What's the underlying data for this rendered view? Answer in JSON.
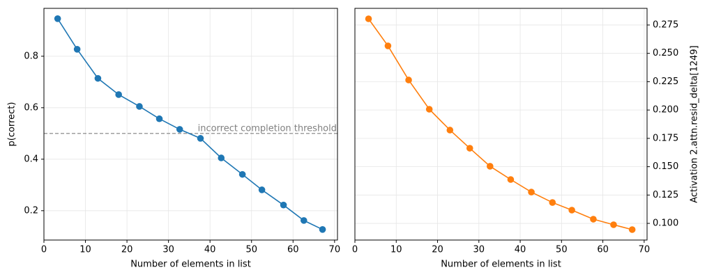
{
  "chart_data": [
    {
      "type": "line",
      "xlabel": "Number of elements in list",
      "ylabel": "p(correct)",
      "y_axis_side": "left",
      "grid": true,
      "x": [
        3.3,
        8,
        13,
        18,
        23,
        27.8,
        32.7,
        37.7,
        42.7,
        47.8,
        52.5,
        57.7,
        62.6,
        67.1
      ],
      "series": [
        {
          "color": "#1f77b4",
          "values": [
            0.946,
            0.827,
            0.714,
            0.651,
            0.605,
            0.557,
            0.516,
            0.481,
            0.405,
            0.341,
            0.281,
            0.222,
            0.162,
            0.127
          ]
        }
      ],
      "xlim": [
        0,
        70.7
      ],
      "xticks": [
        0,
        10,
        20,
        30,
        40,
        50,
        60,
        70
      ],
      "ylim": [
        0.086,
        0.986
      ],
      "yticks": [
        0.2,
        0.4,
        0.6,
        0.8
      ],
      "threshold": {
        "value": 0.5,
        "label": "incorrect completion threshold",
        "color": "#808080"
      }
    },
    {
      "type": "line",
      "xlabel": "Number of elements in list",
      "ylabel": "Activation 2.attn.resid_delta[1249]",
      "y_axis_side": "right",
      "grid": true,
      "x": [
        3.3,
        8,
        13,
        18,
        23,
        27.8,
        32.7,
        37.7,
        42.7,
        47.8,
        52.5,
        57.7,
        62.6,
        67.1
      ],
      "series": [
        {
          "color": "#ff7f0e",
          "values": [
            0.2805,
            0.2566,
            0.2265,
            0.2007,
            0.1823,
            0.1663,
            0.1504,
            0.1387,
            0.1276,
            0.1184,
            0.1117,
            0.1037,
            0.0988,
            0.0945
          ]
        }
      ],
      "xlim": [
        0,
        70.7
      ],
      "xticks": [
        0,
        10,
        20,
        30,
        40,
        50,
        60,
        70
      ],
      "ylim": [
        0.0853,
        0.2897
      ],
      "yticks": [
        {
          "value": 0.1,
          "label": "0.100"
        },
        0.125,
        {
          "value": 0.15,
          "label": "0.150"
        },
        0.175,
        {
          "value": 0.2,
          "label": "0.200"
        },
        0.225,
        {
          "value": 0.25,
          "label": "0.250"
        },
        0.275
      ]
    }
  ]
}
